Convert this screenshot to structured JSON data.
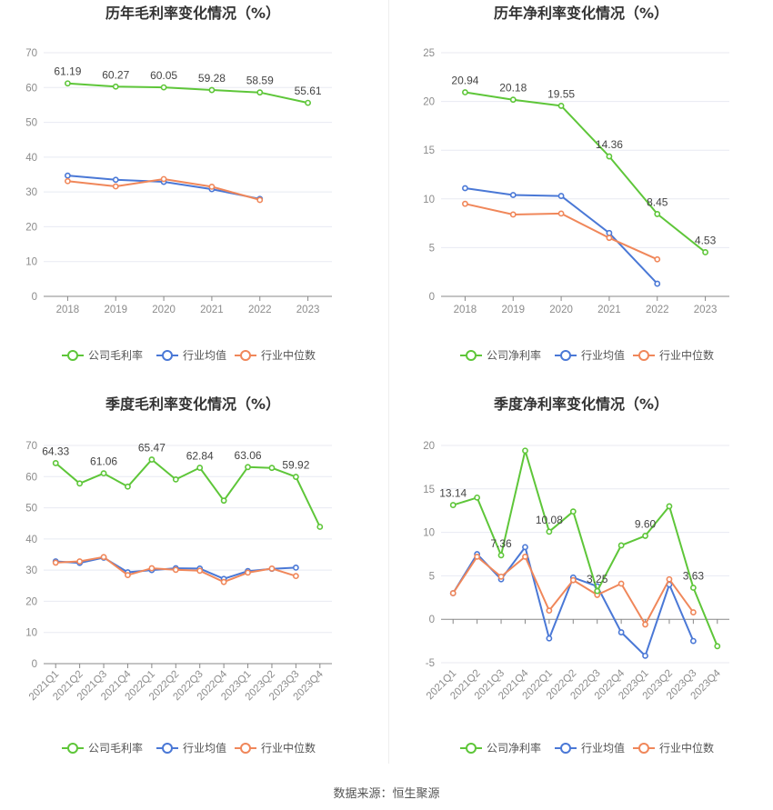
{
  "source_text": "数据来源：恒生聚源",
  "colors": {
    "company": "#5ec639",
    "avg": "#4a78d6",
    "median": "#f0875a",
    "grid": "#e8eaf2",
    "axis": "#cccccc"
  },
  "legend_icons": [
    "circle-line-icon",
    "circle-line-icon",
    "circle-line-icon"
  ],
  "chart_data": [
    {
      "type": "line",
      "title": "历年毛利率变化情况（%）",
      "categories": [
        "2018",
        "2019",
        "2020",
        "2021",
        "2022",
        "2023"
      ],
      "yticks": [
        "0",
        "10",
        "20",
        "30",
        "40",
        "50",
        "60",
        "70"
      ],
      "ylim": [
        0,
        70
      ],
      "series": [
        {
          "name": "公司毛利率",
          "role": "company",
          "values": [
            61.19,
            60.27,
            60.05,
            59.28,
            58.59,
            55.61
          ],
          "labels": [
            "61.19",
            "60.27",
            "60.05",
            "59.28",
            "58.59",
            "55.61"
          ]
        },
        {
          "name": "行业均值",
          "role": "avg",
          "values": [
            34.7,
            33.5,
            32.9,
            30.8,
            28.0,
            null
          ]
        },
        {
          "name": "行业中位数",
          "role": "median",
          "values": [
            33.1,
            31.6,
            33.7,
            31.5,
            27.7,
            null
          ]
        }
      ],
      "legend": "bottom"
    },
    {
      "type": "line",
      "title": "历年净利率变化情况（%）",
      "categories": [
        "2018",
        "2019",
        "2020",
        "2021",
        "2022",
        "2023"
      ],
      "yticks": [
        "0",
        "5",
        "10",
        "15",
        "20",
        "25"
      ],
      "ylim": [
        0,
        25
      ],
      "series": [
        {
          "name": "公司净利率",
          "role": "company",
          "values": [
            20.94,
            20.18,
            19.55,
            14.36,
            8.45,
            4.53
          ],
          "labels": [
            "20.94",
            "20.18",
            "19.55",
            "14.36",
            "8.45",
            "4.53"
          ]
        },
        {
          "name": "行业均值",
          "role": "avg",
          "values": [
            11.1,
            10.4,
            10.3,
            6.5,
            1.3,
            null
          ]
        },
        {
          "name": "行业中位数",
          "role": "median",
          "values": [
            9.5,
            8.4,
            8.5,
            6.0,
            3.8,
            null
          ]
        }
      ],
      "legend": "bottom"
    },
    {
      "type": "line",
      "title": "季度毛利率变化情况（%）",
      "categories": [
        "2021Q1",
        "2021Q2",
        "2021Q3",
        "2021Q4",
        "2022Q1",
        "2022Q2",
        "2022Q3",
        "2022Q4",
        "2023Q1",
        "2023Q2",
        "2023Q3",
        "2023Q4"
      ],
      "yticks": [
        "0",
        "10",
        "20",
        "30",
        "40",
        "50",
        "60",
        "70"
      ],
      "ylim": [
        0,
        70
      ],
      "series": [
        {
          "name": "公司毛利率",
          "role": "company",
          "values": [
            64.33,
            57.8,
            61.06,
            56.8,
            65.47,
            59.1,
            62.84,
            52.3,
            63.06,
            62.8,
            59.92,
            43.9
          ],
          "labels": [
            "64.33",
            "",
            "61.06",
            "",
            "65.47",
            "",
            "62.84",
            "",
            "63.06",
            "",
            "59.92",
            ""
          ]
        },
        {
          "name": "行业均值",
          "role": "avg",
          "values": [
            32.8,
            32.3,
            34.0,
            29.3,
            30.0,
            30.6,
            30.5,
            27.2,
            29.7,
            30.4,
            30.8,
            null
          ]
        },
        {
          "name": "行业中位数",
          "role": "median",
          "values": [
            32.4,
            32.8,
            34.2,
            28.4,
            30.6,
            30.1,
            29.8,
            26.2,
            29.2,
            30.5,
            28.1,
            null
          ]
        }
      ],
      "legend": "bottom"
    },
    {
      "type": "line",
      "title": "季度净利率变化情况（%）",
      "categories": [
        "2021Q1",
        "2021Q2",
        "2021Q3",
        "2021Q4",
        "2022Q1",
        "2022Q2",
        "2022Q3",
        "2022Q4",
        "2023Q1",
        "2023Q2",
        "2023Q3",
        "2023Q4"
      ],
      "yticks": [
        "-5",
        "0",
        "5",
        "10",
        "15",
        "20"
      ],
      "ylim": [
        -5,
        20
      ],
      "series": [
        {
          "name": "公司净利率",
          "role": "company",
          "values": [
            13.14,
            14.0,
            7.36,
            19.4,
            10.08,
            12.4,
            3.25,
            8.5,
            9.6,
            13.0,
            3.63,
            -3.1
          ],
          "labels": [
            "13.14",
            "",
            "7.36",
            "",
            "10.08",
            "",
            "3.25",
            "",
            "9.60",
            "",
            "3.63",
            ""
          ]
        },
        {
          "name": "行业均值",
          "role": "avg",
          "values": [
            3.0,
            7.5,
            4.6,
            8.3,
            -2.2,
            4.8,
            3.8,
            -1.5,
            -4.2,
            4.0,
            -2.5,
            null
          ]
        },
        {
          "name": "行业中位数",
          "role": "median",
          "values": [
            3.0,
            7.2,
            4.9,
            7.2,
            1.0,
            4.5,
            2.8,
            4.1,
            -0.6,
            4.6,
            0.8,
            null
          ]
        }
      ],
      "legend": "bottom"
    }
  ]
}
